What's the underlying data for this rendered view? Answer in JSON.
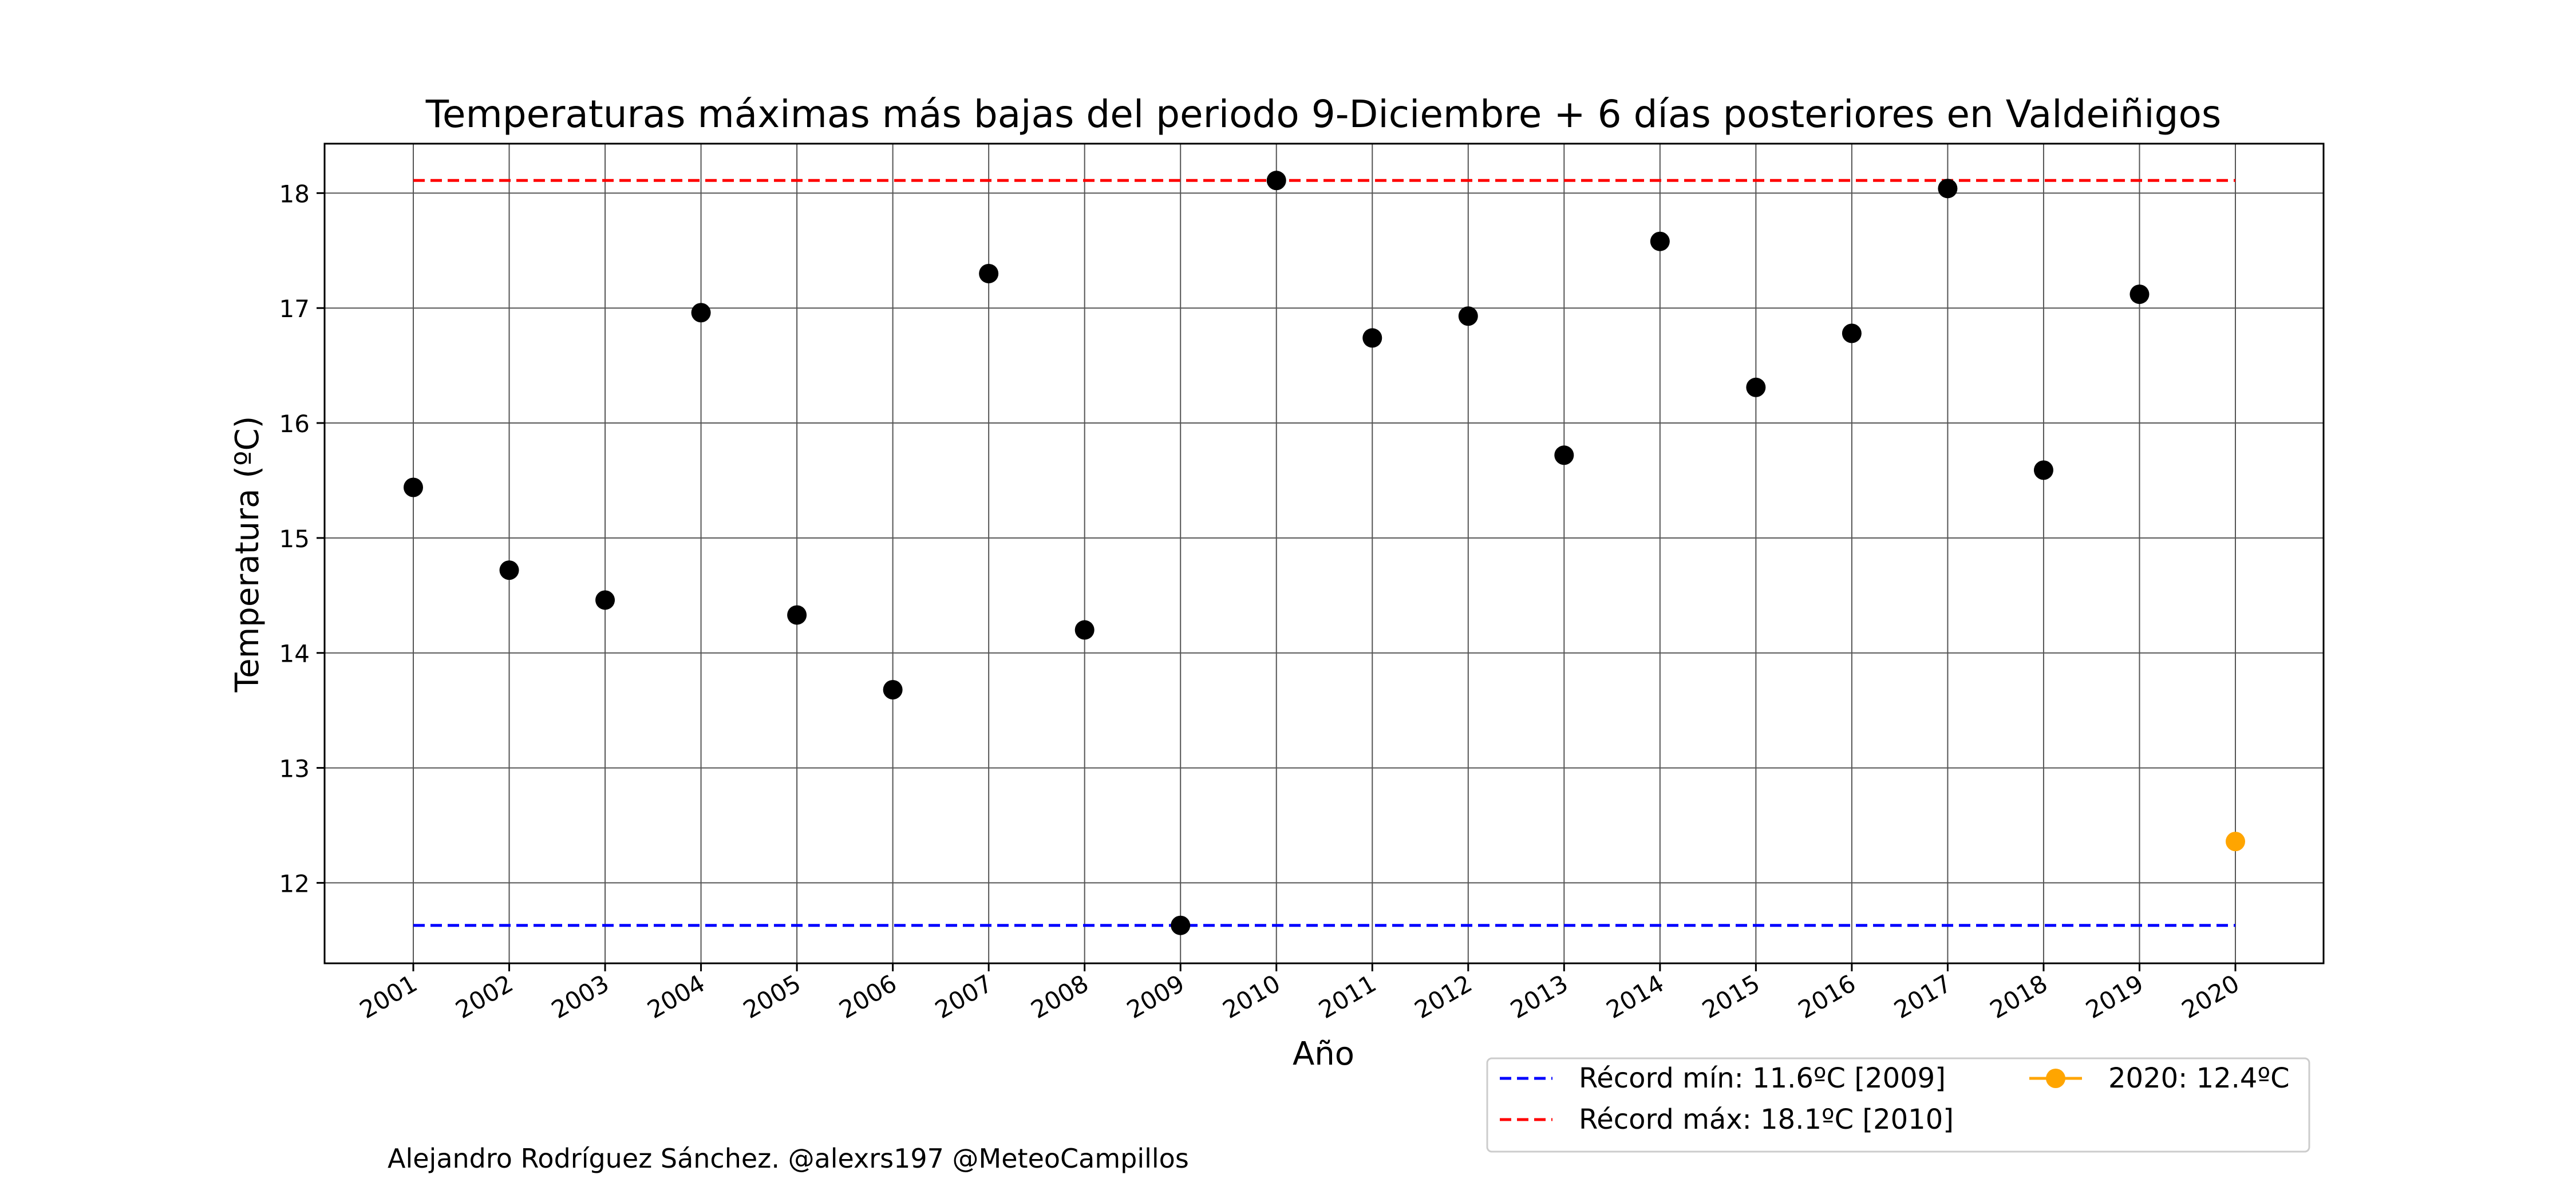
{
  "chart_data": {
    "type": "scatter",
    "title": "Temperaturas máximas más bajas del periodo 9-Diciembre + 6 días posteriores en Valdeiñigos",
    "xlabel": "Año",
    "ylabel": "Temperatura (ºC)",
    "ylim": [
      11.3,
      18.43
    ],
    "yticks": [
      12,
      13,
      14,
      15,
      16,
      17,
      18
    ],
    "grid": true,
    "legend_position": "bottom-right, below axes",
    "x": [
      "2001",
      "2002",
      "2003",
      "2004",
      "2005",
      "2006",
      "2007",
      "2008",
      "2009",
      "2010",
      "2011",
      "2012",
      "2013",
      "2014",
      "2015",
      "2016",
      "2017",
      "2018",
      "2019",
      "2020"
    ],
    "series": [
      {
        "color": "#000000",
        "values": [
          15.44,
          14.72,
          14.46,
          16.96,
          14.33,
          13.68,
          17.3,
          14.2,
          11.63,
          18.11,
          16.74,
          16.93,
          15.72,
          17.58,
          16.31,
          16.78,
          18.04,
          15.59,
          17.12,
          null
        ]
      },
      {
        "name": "2020: 12.4ºC",
        "color": "#ffa500",
        "x": "2020",
        "value": 12.36
      }
    ],
    "reference_lines": [
      {
        "name": "Récord mín: 11.6ºC [2009]",
        "value": 11.63,
        "color": "#0000ff",
        "style": "dashed"
      },
      {
        "name": "Récord máx: 18.1ºC [2010]",
        "value": 18.11,
        "color": "#ff0000",
        "style": "dashed"
      }
    ],
    "legend": [
      {
        "label": "Récord mín: 11.6ºC [2009]",
        "color": "#0000ff",
        "marker": "dashed-line"
      },
      {
        "label": "Récord máx: 18.1ºC [2010]",
        "color": "#ff0000",
        "marker": "dashed-line"
      },
      {
        "label": "2020: 12.4ºC",
        "color": "#ffa500",
        "marker": "line-dot"
      }
    ]
  },
  "footer": {
    "credit": "Alejandro Rodríguez Sánchez. @alexrs197 @MeteoCampillos"
  }
}
